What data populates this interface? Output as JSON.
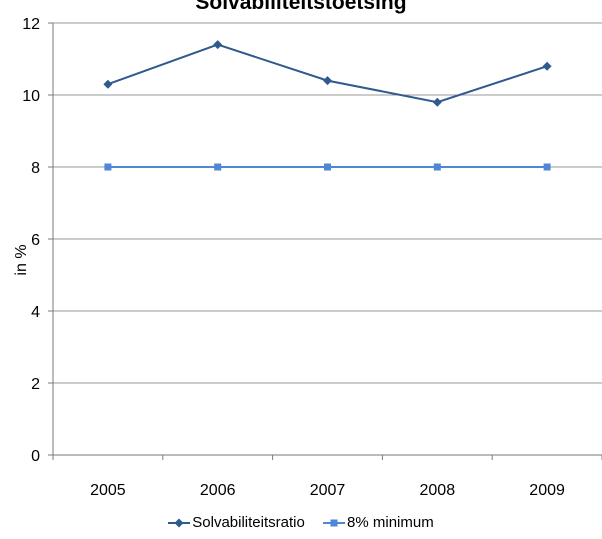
{
  "chart_data": {
    "type": "line",
    "title": "Solvabiliteitstoetsing",
    "xlabel": "",
    "ylabel": "in %",
    "categories": [
      "2005",
      "2006",
      "2007",
      "2008",
      "2009"
    ],
    "ylim": [
      0,
      12
    ],
    "yticks": [
      0,
      2,
      4,
      6,
      8,
      10,
      12
    ],
    "grid": true,
    "legend_position": "bottom",
    "series": [
      {
        "name": "Solvabiliteitsratio",
        "values": [
          10.3,
          11.4,
          10.4,
          9.8,
          10.8
        ],
        "color": "#2e5a8e",
        "marker": "diamond"
      },
      {
        "name": "8% minimum",
        "values": [
          8,
          8,
          8,
          8,
          8
        ],
        "color": "#4f86d6",
        "marker": "square"
      }
    ]
  }
}
